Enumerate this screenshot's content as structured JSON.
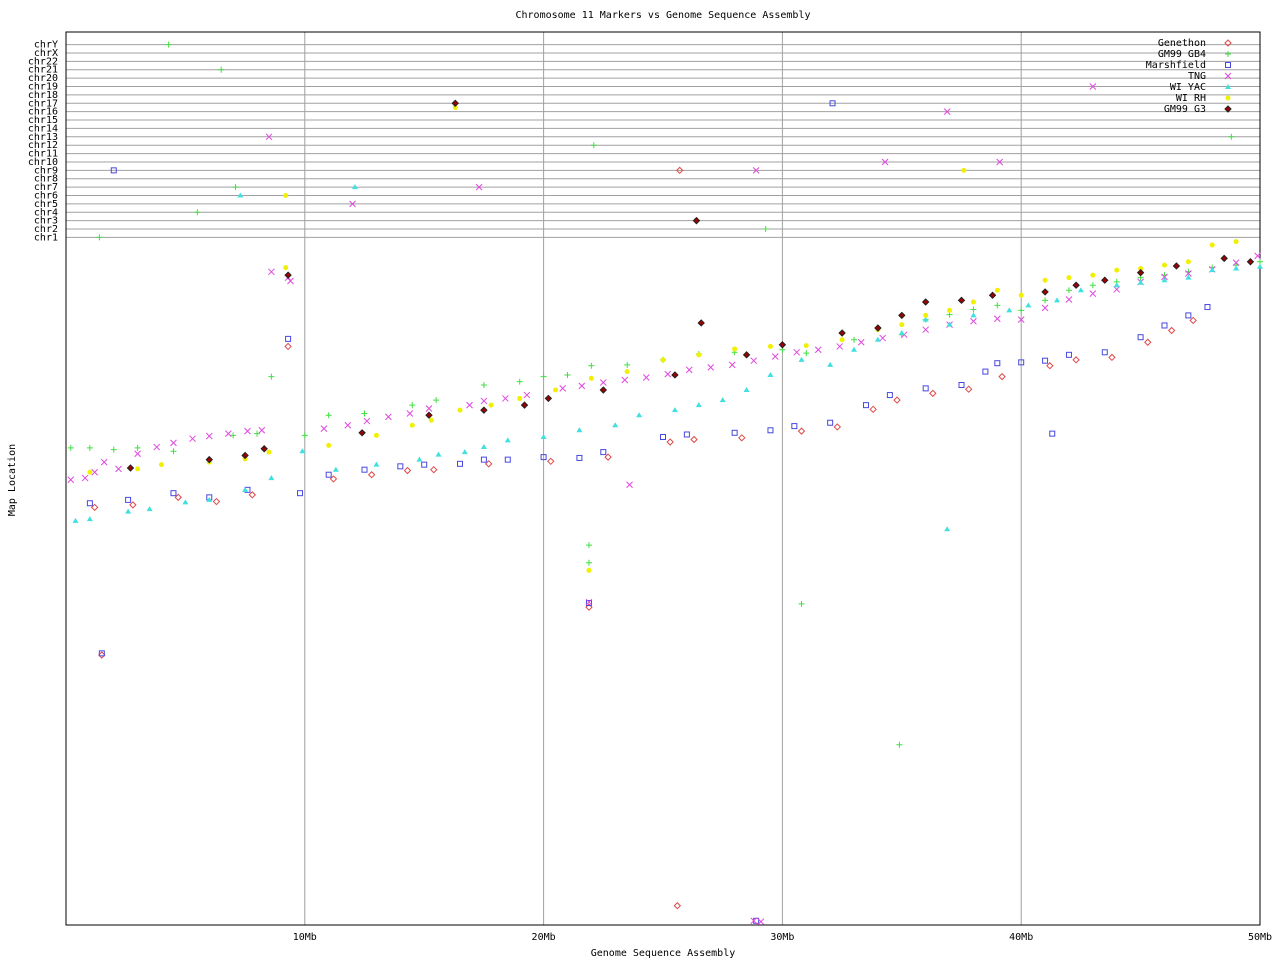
{
  "chart_data": {
    "type": "scatter",
    "title": "Chromosome 11 Markers vs Genome Sequence Assembly",
    "x_label": "Genome Sequence Assembly",
    "y_label": "Map Location",
    "xlim": [
      0,
      50
    ],
    "ylim": [
      0,
      106.5
    ],
    "xticks": [
      {
        "value": 10,
        "label": "10Mb"
      },
      {
        "value": 20,
        "label": "20Mb"
      },
      {
        "value": 30,
        "label": "30Mb"
      },
      {
        "value": 40,
        "label": "40Mb"
      },
      {
        "value": 50,
        "label": "50Mb"
      }
    ],
    "yticks": [
      {
        "value": 82,
        "label": "chr1"
      },
      {
        "value": 83,
        "label": "chr2"
      },
      {
        "value": 84,
        "label": "chr3"
      },
      {
        "value": 85,
        "label": "chr4"
      },
      {
        "value": 86,
        "label": "chr5"
      },
      {
        "value": 87,
        "label": "chr6"
      },
      {
        "value": 88,
        "label": "chr7"
      },
      {
        "value": 89,
        "label": "chr8"
      },
      {
        "value": 90,
        "label": "chr9"
      },
      {
        "value": 91,
        "label": "chr10"
      },
      {
        "value": 92,
        "label": "chr11"
      },
      {
        "value": 93,
        "label": "chr12"
      },
      {
        "value": 94,
        "label": "chr13"
      },
      {
        "value": 95,
        "label": "chr14"
      },
      {
        "value": 96,
        "label": "chr15"
      },
      {
        "value": 97,
        "label": "chr16"
      },
      {
        "value": 98,
        "label": "chr17"
      },
      {
        "value": 99,
        "label": "chr18"
      },
      {
        "value": 100,
        "label": "chr19"
      },
      {
        "value": 101,
        "label": "chr20"
      },
      {
        "value": 102,
        "label": "chr21"
      },
      {
        "value": 103,
        "label": "chr22"
      },
      {
        "value": 104,
        "label": "chrX"
      },
      {
        "value": 105,
        "label": "chrY"
      }
    ],
    "grid": true,
    "legend": "top-right",
    "series": [
      {
        "name": "Genethon",
        "color": "#e04848",
        "marker": "diamond",
        "x": [
          1.2,
          2.8,
          4.7,
          6.3,
          7.8,
          11.2,
          12.8,
          14.3,
          15.4,
          17.7,
          20.3,
          22.7,
          25.3,
          26.3,
          28.3,
          30.8,
          32.3,
          33.8,
          34.8,
          36.3,
          37.8,
          39.2,
          41.2,
          42.3,
          43.8,
          45.3,
          46.3,
          47.2,
          25.6,
          25.7,
          26.4,
          9.3,
          21.9,
          1.5
        ],
        "values": [
          49.8,
          50.1,
          51,
          50.5,
          51.3,
          53.2,
          53.7,
          54.2,
          54.3,
          55,
          55.3,
          55.8,
          57.6,
          57.9,
          58.1,
          58.9,
          59.4,
          61.5,
          62.6,
          63.4,
          63.9,
          65.4,
          66.7,
          67.4,
          67.7,
          69.5,
          70.9,
          72.1,
          2.3,
          90,
          84,
          69,
          37.9,
          32.2
        ]
      },
      {
        "name": "GM99 GB4",
        "color": "#40e040",
        "marker": "plus",
        "x": [
          0.2,
          1,
          2,
          3,
          4.5,
          7,
          8,
          10,
          11,
          12.5,
          14.5,
          15.5,
          17.5,
          19,
          20,
          21,
          22,
          23.5,
          25,
          26.5,
          28,
          30,
          31,
          33,
          35,
          36,
          37,
          38,
          39,
          40,
          41,
          42,
          43,
          44,
          45,
          46,
          47,
          48,
          49,
          50,
          1.4,
          4.3,
          6.5,
          5.5,
          7.1,
          8.6,
          22.1,
          29.3,
          30.8,
          34.9,
          48.8,
          21.9,
          21.9
        ],
        "values": [
          56.9,
          56.9,
          56.7,
          56.9,
          56.5,
          58.4,
          58.6,
          58.4,
          60.8,
          61,
          62,
          62.6,
          64.4,
          64.8,
          65.4,
          65.6,
          66.7,
          66.8,
          67.4,
          68.1,
          68.3,
          68.6,
          68.2,
          69.8,
          70.4,
          72.2,
          72.8,
          73.4,
          73.9,
          73.3,
          74.5,
          75.7,
          76.3,
          76.7,
          77.2,
          77.5,
          77.9,
          78.4,
          78.7,
          79.1,
          82,
          105,
          102,
          85,
          88,
          65.4,
          93,
          83,
          38.3,
          21.5,
          94,
          45.3,
          43.2
        ]
      },
      {
        "name": "Marshfield",
        "color": "#4848e0",
        "marker": "square",
        "x": [
          1,
          2.6,
          4.5,
          6,
          7.6,
          9.8,
          11,
          12.5,
          14,
          15,
          16.5,
          17.5,
          18.5,
          20,
          21.5,
          22.5,
          25,
          26,
          28,
          29.5,
          30.5,
          32,
          33.5,
          34.5,
          36,
          37.5,
          38.5,
          39,
          40,
          41,
          42,
          43.5,
          45,
          46,
          47,
          47.8,
          1.5,
          2,
          9.3,
          32.1,
          21.9,
          41.3,
          28.9
        ],
        "values": [
          50.3,
          50.7,
          51.5,
          51,
          51.9,
          51.5,
          53.7,
          54.3,
          54.7,
          54.9,
          55,
          55.5,
          55.5,
          55.8,
          55.7,
          56.4,
          58.2,
          58.5,
          58.7,
          59,
          59.5,
          59.9,
          62,
          63.2,
          64,
          64.4,
          66,
          67,
          67.1,
          67.3,
          68,
          68.3,
          70.1,
          71.5,
          72.7,
          73.7,
          32.4,
          90,
          69.9,
          98,
          38.4,
          58.6,
          0.5
        ]
      },
      {
        "name": "TNG",
        "color": "#e048e0",
        "marker": "x",
        "x": [
          0.2,
          0.8,
          1.2,
          1.6,
          2.2,
          3,
          3.8,
          4.5,
          5.3,
          6,
          6.8,
          7.6,
          8.2,
          8.6,
          9.3,
          9.4,
          10.8,
          11.8,
          12.6,
          13.5,
          14.4,
          15.2,
          16.9,
          17.5,
          18.4,
          19.3,
          20.8,
          21.6,
          22.5,
          23.4,
          24.3,
          25.2,
          26.1,
          27,
          27.9,
          28.8,
          29.7,
          30.6,
          31.5,
          32.4,
          33.3,
          34.2,
          35.1,
          36,
          37,
          38,
          39,
          40,
          41,
          42,
          43,
          44,
          45,
          46,
          47,
          48,
          49,
          49.9,
          8.5,
          12,
          17.3,
          23.6,
          21.9,
          28.8,
          29.1,
          28.9,
          34.3,
          36.9,
          39.1,
          43
        ],
        "values": [
          53.1,
          53.3,
          54,
          55.2,
          54.4,
          56.2,
          57,
          57.5,
          58,
          58.3,
          58.6,
          58.9,
          59,
          77.9,
          77.2,
          76.8,
          59.2,
          59.6,
          60.1,
          60.6,
          61,
          61.6,
          62,
          62.5,
          62.8,
          63.2,
          64,
          64.3,
          64.7,
          65,
          65.3,
          65.7,
          66.2,
          66.5,
          66.8,
          67.3,
          67.8,
          68.3,
          68.6,
          69,
          69.5,
          70,
          70.4,
          71,
          71.6,
          72,
          72.3,
          72.2,
          73.6,
          74.6,
          75.3,
          75.8,
          76.7,
          77.3,
          77.7,
          78.2,
          79,
          79.8,
          94,
          86,
          88,
          52.5,
          38.5,
          0.5,
          0.4,
          90,
          91,
          97,
          91,
          100
        ]
      },
      {
        "name": "WI YAC",
        "color": "#40e0e0",
        "marker": "triangle",
        "x": [
          0.4,
          1,
          2.6,
          3.5,
          5,
          6,
          7.5,
          8.6,
          9.9,
          11.3,
          13,
          14.8,
          15.6,
          16.7,
          17.5,
          18.5,
          20,
          21.5,
          23,
          24,
          25.5,
          26.5,
          27.5,
          28.5,
          29.5,
          30.8,
          32,
          33,
          34,
          35,
          36,
          37,
          38,
          39.5,
          40.3,
          41.5,
          42.5,
          44,
          45,
          46,
          47,
          48,
          49,
          50,
          7.3,
          12.1,
          36.9
        ],
        "values": [
          48.2,
          48.4,
          49.3,
          49.6,
          50.4,
          50.7,
          51.9,
          53.3,
          56.5,
          54.3,
          54.9,
          55.5,
          56.1,
          56.4,
          57,
          57.8,
          58.2,
          59,
          59.6,
          60.8,
          61.4,
          62,
          62.6,
          63.8,
          65.6,
          67.4,
          66.8,
          68.6,
          69.8,
          70.6,
          72.2,
          71.6,
          72.7,
          73.3,
          73.9,
          74.5,
          75.7,
          76.3,
          76.6,
          76.9,
          77.2,
          78.1,
          78.3,
          78.5,
          87,
          88,
          47.2
        ]
      },
      {
        "name": "WI RH",
        "color": "#f0f000",
        "marker": "dot",
        "x": [
          1,
          3,
          4,
          6,
          7.5,
          8.5,
          9.2,
          11,
          13,
          14.5,
          15.3,
          16.5,
          17.8,
          19,
          20.5,
          22,
          23.5,
          25,
          26.5,
          28,
          29.5,
          31,
          32.5,
          34,
          35,
          36,
          37,
          38,
          39,
          40,
          41,
          42,
          43,
          44,
          45,
          46,
          47,
          48,
          49,
          16.3,
          9.2,
          37.6,
          21.9
        ],
        "values": [
          54,
          54.4,
          54.9,
          55.2,
          55.6,
          56.4,
          78.4,
          57.2,
          58.4,
          59.6,
          60.2,
          61.4,
          62,
          62.8,
          63.8,
          65.2,
          66,
          67.4,
          68,
          68.7,
          69,
          69.1,
          69.8,
          71,
          71.6,
          72.7,
          73.3,
          74.3,
          75.7,
          75.1,
          76.9,
          77.2,
          77.5,
          78.1,
          78.3,
          78.7,
          79.1,
          81.1,
          81.5,
          97.5,
          87,
          90,
          42.3
        ]
      },
      {
        "name": "GM99 G3",
        "color": "#a00000",
        "marker": "diamond-filled",
        "x": [
          2.7,
          6,
          7.5,
          8.3,
          12.4,
          15.2,
          17.5,
          19.2,
          20.2,
          22.5,
          25.5,
          26.6,
          28.5,
          30,
          32.5,
          34,
          35,
          36,
          37.5,
          38.8,
          41,
          42.3,
          43.5,
          45,
          46.5,
          48.5,
          49.6,
          9.3,
          16.3,
          26.4
        ],
        "values": [
          54.5,
          55.5,
          56,
          56.8,
          58.7,
          60.8,
          61.4,
          62,
          62.8,
          63.8,
          65.6,
          71.8,
          68,
          69.2,
          70.6,
          71.2,
          72.7,
          74.3,
          74.5,
          75.1,
          75.5,
          76.3,
          76.9,
          77.8,
          78.6,
          79.5,
          79.1,
          77.5,
          98,
          84
        ]
      }
    ]
  }
}
